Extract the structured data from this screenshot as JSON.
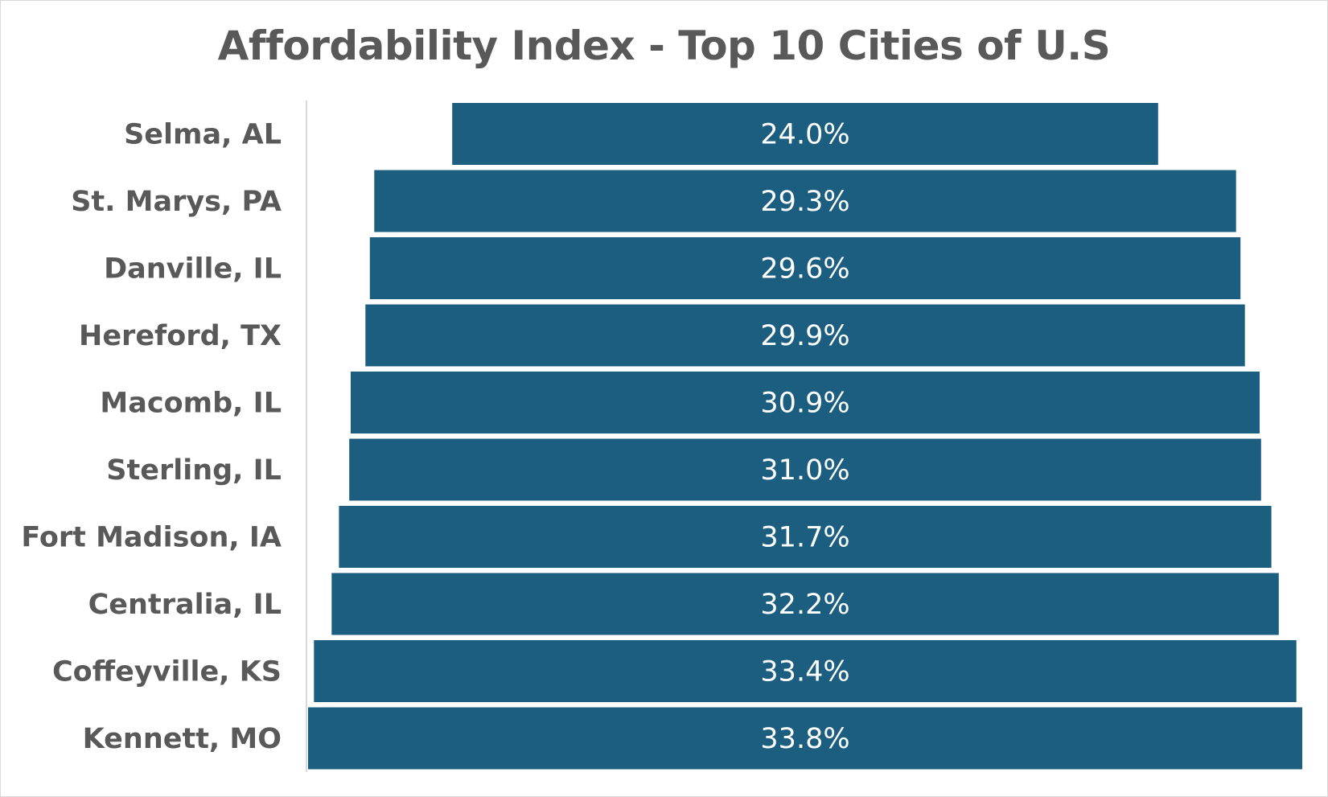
{
  "chart_data": {
    "type": "bar",
    "orientation": "horizontal",
    "layout": "centered-funnel",
    "title": "Affordability Index - Top 10 Cities of U.S",
    "categories": [
      "Selma, AL",
      "St. Marys, PA",
      "Danville, IL",
      "Hereford, TX",
      "Macomb, IL",
      "Sterling, IL",
      "Fort Madison, IA",
      "Centralia, IL",
      "Coffeyville, KS",
      "Kennett, MO"
    ],
    "values": [
      24.0,
      29.3,
      29.6,
      29.9,
      30.9,
      31.0,
      31.7,
      32.2,
      33.4,
      33.8
    ],
    "value_labels": [
      "24.0%",
      "29.3%",
      "29.6%",
      "29.9%",
      "30.9%",
      "31.0%",
      "31.7%",
      "32.2%",
      "33.4%",
      "33.8%"
    ],
    "xlim": [
      0,
      33.8
    ],
    "bar_color": "#1b5e80",
    "label_color": "#ffffff",
    "grid": false,
    "legend": false
  }
}
